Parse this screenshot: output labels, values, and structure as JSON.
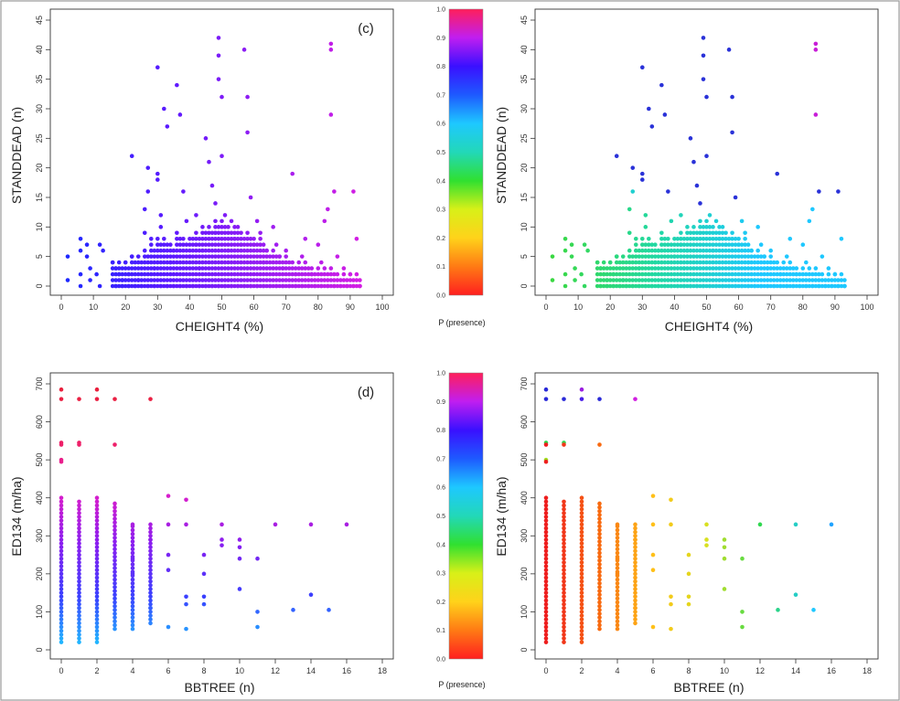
{
  "colorbar": {
    "label": "P (presence)",
    "ticks": [
      "0.0",
      "0.1",
      "0.2",
      "0.3",
      "0.4",
      "0.5",
      "0.6",
      "0.7",
      "0.8",
      "0.9",
      "1.0"
    ],
    "range": [
      0,
      1
    ],
    "stops": [
      "#ff1f1f",
      "#ff7a14",
      "#ffd21a",
      "#d8f018",
      "#30e030",
      "#22d8b8",
      "#1ec8ff",
      "#1e5aff",
      "#3a10ff",
      "#c01ef0",
      "#ff1f5a"
    ]
  },
  "chart_data": [
    {
      "type": "scatter",
      "panel_label": "(c)",
      "xlabel": "CHEIGHT4 (%)",
      "ylabel": "STANDDEAD (n)",
      "xlim": [
        0,
        100
      ],
      "ylim": [
        0,
        45
      ],
      "xticks": [
        0,
        10,
        20,
        30,
        40,
        50,
        60,
        70,
        80,
        90,
        100
      ],
      "yticks": [
        0,
        5,
        10,
        15,
        20,
        25,
        30,
        35,
        40,
        45
      ],
      "color_mode": "gradient_x",
      "gradient_stops": [
        "#1a2aff",
        "#5b1aff",
        "#a01ef0",
        "#e01ee0"
      ],
      "x": [
        2,
        2,
        6,
        6,
        6,
        6,
        8,
        8,
        9,
        9,
        11,
        12,
        12,
        13,
        16,
        17,
        18,
        19,
        20,
        21,
        22,
        22,
        24,
        26,
        26,
        27,
        27,
        28,
        29,
        30,
        30,
        30,
        31,
        31,
        32,
        33,
        34,
        35,
        36,
        37,
        38,
        39,
        40,
        41,
        42,
        42,
        43,
        44,
        45,
        46,
        47,
        48,
        48,
        49,
        49,
        49,
        50,
        50,
        51,
        52,
        53,
        54,
        55,
        56,
        57,
        58,
        58,
        59,
        60,
        61,
        62,
        63,
        64,
        66,
        67,
        68,
        69,
        70,
        72,
        73,
        75,
        76,
        78,
        80,
        81,
        82,
        83,
        84,
        84,
        84,
        85,
        86,
        88,
        90,
        91,
        92,
        93
      ],
      "y": [
        1,
        5,
        0,
        2,
        6,
        8,
        5,
        7,
        1,
        3,
        2,
        0,
        7,
        6,
        4,
        3,
        2,
        1,
        4,
        2,
        5,
        22,
        1,
        9,
        13,
        20,
        16,
        8,
        3,
        19,
        37,
        18,
        10,
        12,
        30,
        27,
        4,
        6,
        34,
        29,
        16,
        11,
        5,
        8,
        12,
        7,
        3,
        6,
        25,
        21,
        17,
        9,
        14,
        42,
        39,
        35,
        32,
        22,
        12,
        6,
        11,
        8,
        10,
        7,
        40,
        32,
        26,
        15,
        7,
        11,
        9,
        4,
        6,
        10,
        7,
        5,
        3,
        6,
        19,
        2,
        5,
        8,
        2,
        7,
        4,
        11,
        13,
        41,
        40,
        29,
        16,
        5,
        3,
        2,
        16,
        8,
        0
      ],
      "fill_columns": [
        {
          "x": 16,
          "top": 4
        },
        {
          "x": 18,
          "top": 4
        },
        {
          "x": 20,
          "top": 4
        },
        {
          "x": 22,
          "top": 5
        },
        {
          "x": 24,
          "top": 5
        },
        {
          "x": 26,
          "top": 6
        },
        {
          "x": 28,
          "top": 7
        },
        {
          "x": 30,
          "top": 8
        },
        {
          "x": 32,
          "top": 8
        },
        {
          "x": 34,
          "top": 7
        },
        {
          "x": 36,
          "top": 9
        },
        {
          "x": 38,
          "top": 8
        },
        {
          "x": 40,
          "top": 8
        },
        {
          "x": 42,
          "top": 9
        },
        {
          "x": 44,
          "top": 10
        },
        {
          "x": 46,
          "top": 10
        },
        {
          "x": 48,
          "top": 11
        },
        {
          "x": 50,
          "top": 11
        },
        {
          "x": 52,
          "top": 10
        },
        {
          "x": 54,
          "top": 10
        },
        {
          "x": 56,
          "top": 9
        },
        {
          "x": 58,
          "top": 9
        },
        {
          "x": 60,
          "top": 8
        },
        {
          "x": 62,
          "top": 8
        },
        {
          "x": 64,
          "top": 6
        },
        {
          "x": 66,
          "top": 6
        },
        {
          "x": 68,
          "top": 5
        },
        {
          "x": 70,
          "top": 5
        },
        {
          "x": 72,
          "top": 4
        },
        {
          "x": 74,
          "top": 4
        },
        {
          "x": 76,
          "top": 4
        },
        {
          "x": 78,
          "top": 3
        },
        {
          "x": 80,
          "top": 3
        },
        {
          "x": 82,
          "top": 3
        },
        {
          "x": 84,
          "top": 3
        },
        {
          "x": 86,
          "top": 2
        },
        {
          "x": 88,
          "top": 2
        },
        {
          "x": 90,
          "top": 2
        },
        {
          "x": 92,
          "top": 2
        }
      ]
    },
    {
      "type": "scatter",
      "panel_label": "",
      "xlabel": "CHEIGHT4 (%)",
      "ylabel": "STANDDEAD (n)",
      "xlim": [
        0,
        100
      ],
      "ylim": [
        0,
        45
      ],
      "xticks": [
        0,
        10,
        20,
        30,
        40,
        50,
        60,
        70,
        80,
        90,
        100
      ],
      "yticks": [
        0,
        5,
        10,
        15,
        20,
        25,
        30,
        35,
        40,
        45
      ],
      "color_mode": "gradient_x",
      "gradient_stops": [
        "#3cd83c",
        "#22d8a0",
        "#1ec8ff",
        "#1ec8ff"
      ],
      "outlier_color": "#2a32d8",
      "outlier_color_high": "#c81ed8",
      "x": [
        2,
        2,
        6,
        6,
        6,
        6,
        8,
        8,
        9,
        9,
        11,
        12,
        12,
        13,
        16,
        17,
        18,
        19,
        20,
        21,
        22,
        22,
        24,
        26,
        26,
        27,
        27,
        28,
        29,
        30,
        30,
        30,
        31,
        31,
        32,
        33,
        34,
        35,
        36,
        37,
        38,
        39,
        40,
        41,
        42,
        42,
        43,
        44,
        45,
        46,
        47,
        48,
        48,
        49,
        49,
        49,
        50,
        50,
        51,
        52,
        53,
        54,
        55,
        56,
        57,
        58,
        58,
        59,
        60,
        61,
        62,
        63,
        64,
        66,
        67,
        68,
        69,
        70,
        72,
        73,
        75,
        76,
        78,
        80,
        81,
        82,
        83,
        84,
        84,
        84,
        85,
        86,
        88,
        90,
        91,
        92,
        93
      ],
      "y": [
        1,
        5,
        0,
        2,
        6,
        8,
        5,
        7,
        1,
        3,
        2,
        0,
        7,
        6,
        4,
        3,
        2,
        1,
        4,
        2,
        5,
        22,
        1,
        9,
        13,
        20,
        16,
        8,
        3,
        19,
        37,
        18,
        10,
        12,
        30,
        27,
        4,
        6,
        34,
        29,
        16,
        11,
        5,
        8,
        12,
        7,
        3,
        6,
        25,
        21,
        17,
        9,
        14,
        42,
        39,
        35,
        32,
        22,
        12,
        6,
        11,
        8,
        10,
        7,
        40,
        32,
        26,
        15,
        7,
        11,
        9,
        4,
        6,
        10,
        7,
        5,
        3,
        6,
        19,
        2,
        5,
        8,
        2,
        7,
        4,
        11,
        13,
        41,
        40,
        29,
        16,
        5,
        3,
        2,
        16,
        8,
        0
      ],
      "fill_columns": [
        {
          "x": 16,
          "top": 4
        },
        {
          "x": 18,
          "top": 4
        },
        {
          "x": 20,
          "top": 4
        },
        {
          "x": 22,
          "top": 5
        },
        {
          "x": 24,
          "top": 5
        },
        {
          "x": 26,
          "top": 6
        },
        {
          "x": 28,
          "top": 7
        },
        {
          "x": 30,
          "top": 8
        },
        {
          "x": 32,
          "top": 8
        },
        {
          "x": 34,
          "top": 7
        },
        {
          "x": 36,
          "top": 9
        },
        {
          "x": 38,
          "top": 8
        },
        {
          "x": 40,
          "top": 8
        },
        {
          "x": 42,
          "top": 9
        },
        {
          "x": 44,
          "top": 10
        },
        {
          "x": 46,
          "top": 10
        },
        {
          "x": 48,
          "top": 11
        },
        {
          "x": 50,
          "top": 11
        },
        {
          "x": 52,
          "top": 10
        },
        {
          "x": 54,
          "top": 10
        },
        {
          "x": 56,
          "top": 9
        },
        {
          "x": 58,
          "top": 9
        },
        {
          "x": 60,
          "top": 8
        },
        {
          "x": 62,
          "top": 8
        },
        {
          "x": 64,
          "top": 6
        },
        {
          "x": 66,
          "top": 6
        },
        {
          "x": 68,
          "top": 5
        },
        {
          "x": 70,
          "top": 5
        },
        {
          "x": 72,
          "top": 4
        },
        {
          "x": 74,
          "top": 4
        },
        {
          "x": 76,
          "top": 4
        },
        {
          "x": 78,
          "top": 3
        },
        {
          "x": 80,
          "top": 3
        },
        {
          "x": 82,
          "top": 3
        },
        {
          "x": 84,
          "top": 3
        },
        {
          "x": 86,
          "top": 2
        },
        {
          "x": 88,
          "top": 2
        },
        {
          "x": 90,
          "top": 2
        },
        {
          "x": 92,
          "top": 2
        }
      ]
    },
    {
      "type": "scatter",
      "panel_label": "(d)",
      "xlabel": "BBTREE (n)",
      "ylabel": "ED134 (m/ha)",
      "xlim": [
        0,
        18
      ],
      "ylim": [
        0,
        700
      ],
      "xticks": [
        0,
        2,
        4,
        6,
        8,
        10,
        12,
        14,
        16,
        18
      ],
      "yticks": [
        0,
        100,
        200,
        300,
        400,
        500,
        600,
        700
      ],
      "color_mode": "gradient_y",
      "gradient_stops": [
        "#1ec8ff",
        "#3a40ff",
        "#8a1ef0",
        "#e01ec8",
        "#f0205a",
        "#e8203a"
      ],
      "columns": [
        {
          "x": 0,
          "min": 20,
          "max": 405
        },
        {
          "x": 1,
          "min": 20,
          "max": 390
        },
        {
          "x": 2,
          "min": 20,
          "max": 405
        },
        {
          "x": 3,
          "min": 55,
          "max": 390
        },
        {
          "x": 4,
          "min": 55,
          "max": 330
        },
        {
          "x": 5,
          "min": 70,
          "max": 330
        }
      ],
      "x": [
        0,
        0,
        0,
        0,
        0,
        0,
        1,
        1,
        1,
        2,
        2,
        3,
        3,
        5,
        4,
        4,
        4,
        5,
        5,
        6,
        6,
        6,
        6,
        6,
        7,
        7,
        7,
        7,
        7,
        8,
        8,
        8,
        8,
        9,
        9,
        9,
        10,
        10,
        10,
        10,
        11,
        11,
        11,
        12,
        13,
        14,
        14,
        15,
        16
      ],
      "y": [
        685,
        660,
        545,
        540,
        500,
        495,
        660,
        545,
        540,
        685,
        660,
        660,
        540,
        660,
        330,
        240,
        200,
        290,
        110,
        405,
        330,
        250,
        210,
        60,
        395,
        330,
        140,
        120,
        55,
        250,
        200,
        120,
        140,
        330,
        290,
        275,
        290,
        270,
        240,
        160,
        240,
        60,
        100,
        330,
        105,
        330,
        145,
        105,
        330
      ]
    },
    {
      "type": "scatter",
      "panel_label": "",
      "xlabel": "BBTREE (n)",
      "ylabel": "ED134 (m/ha)",
      "xlim": [
        0,
        18
      ],
      "ylim": [
        0,
        700
      ],
      "xticks": [
        0,
        2,
        4,
        6,
        8,
        10,
        12,
        14,
        16,
        18
      ],
      "yticks": [
        0,
        100,
        200,
        300,
        400,
        500,
        600,
        700
      ],
      "color_mode": "gradient_x",
      "gradient_stops": [
        "#ee1e1e",
        "#f86a10",
        "#ffc018",
        "#d8e020",
        "#30d850",
        "#20c8ff",
        "#1e5aff"
      ],
      "columns": [
        {
          "x": 0,
          "min": 20,
          "max": 405
        },
        {
          "x": 1,
          "min": 20,
          "max": 390
        },
        {
          "x": 2,
          "min": 20,
          "max": 405
        },
        {
          "x": 3,
          "min": 55,
          "max": 390
        },
        {
          "x": 4,
          "min": 55,
          "max": 330
        },
        {
          "x": 5,
          "min": 70,
          "max": 330
        }
      ],
      "x": [
        0,
        0,
        0,
        0,
        0,
        0,
        1,
        1,
        1,
        2,
        2,
        3,
        3,
        5,
        4,
        4,
        4,
        5,
        5,
        6,
        6,
        6,
        6,
        6,
        7,
        7,
        7,
        7,
        7,
        8,
        8,
        8,
        8,
        9,
        9,
        9,
        10,
        10,
        10,
        10,
        11,
        11,
        11,
        12,
        13,
        14,
        14,
        15,
        16
      ],
      "y": [
        685,
        660,
        545,
        540,
        500,
        495,
        660,
        545,
        540,
        685,
        660,
        660,
        540,
        660,
        330,
        240,
        200,
        290,
        110,
        405,
        330,
        250,
        210,
        60,
        395,
        330,
        140,
        120,
        55,
        250,
        200,
        120,
        140,
        330,
        290,
        275,
        290,
        270,
        240,
        160,
        240,
        60,
        100,
        330,
        105,
        330,
        145,
        105,
        330
      ],
      "highlight_points": [
        {
          "x": 0,
          "y": 685,
          "color": "#2a2ad8"
        },
        {
          "x": 0,
          "y": 660,
          "color": "#2a2ad8"
        },
        {
          "x": 1,
          "y": 660,
          "color": "#2a2ad8"
        },
        {
          "x": 2,
          "y": 685,
          "color": "#9a1ee0"
        },
        {
          "x": 2,
          "y": 660,
          "color": "#4a1ee8"
        },
        {
          "x": 3,
          "y": 660,
          "color": "#2a2ad8"
        },
        {
          "x": 5,
          "y": 660,
          "color": "#d01ee0"
        },
        {
          "x": 0,
          "y": 545,
          "color": "#30d850"
        },
        {
          "x": 0,
          "y": 500,
          "color": "#a0e020"
        },
        {
          "x": 1,
          "y": 545,
          "color": "#30d850"
        },
        {
          "x": 3,
          "y": 545,
          "color": "#20d8c0"
        }
      ]
    }
  ]
}
